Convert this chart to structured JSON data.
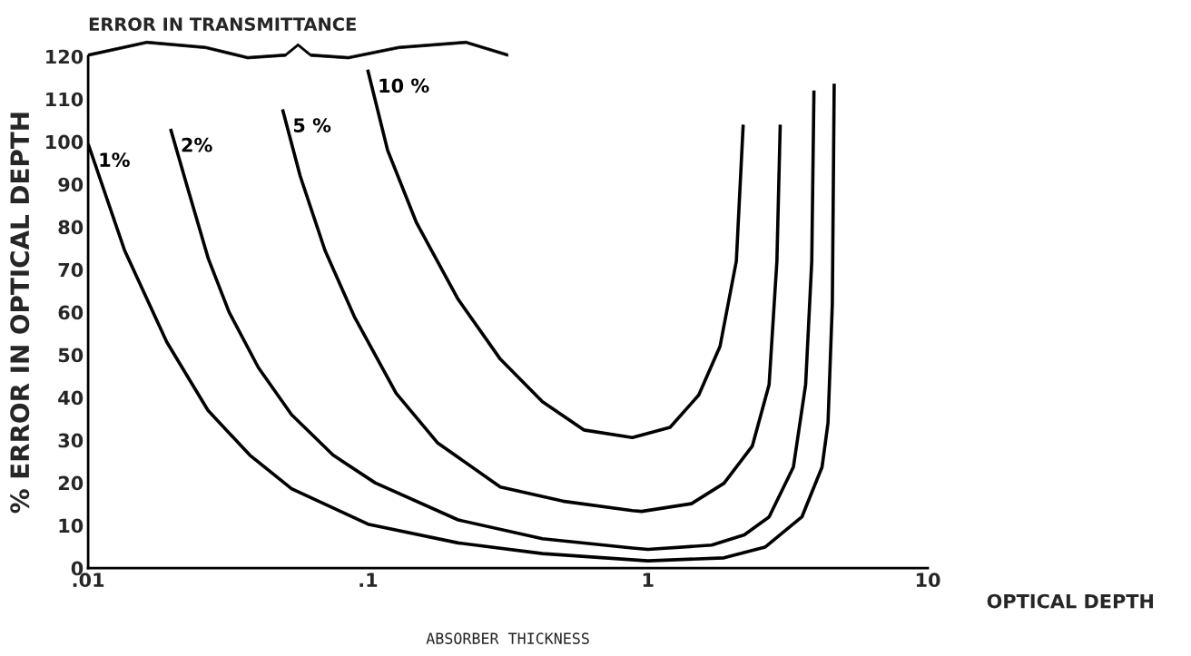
{
  "chart_data": {
    "type": "line",
    "xlabel": "OPTICAL DEPTH",
    "ylabel": "% ERROR IN OPTICAL DEPTH",
    "annotations": [
      "ERROR IN TRANSMITTANCE",
      "ABSORBER THICKNESS"
    ],
    "log": "x",
    "xlim": [
      0.01,
      10
    ],
    "ylim": [
      0,
      120
    ],
    "xticks": [
      {
        "value": 0.01,
        "label": ".01"
      },
      {
        "value": 0.1,
        "label": ".1"
      },
      1,
      10
    ],
    "yticks": [
      0,
      10,
      20,
      30,
      40,
      50,
      60,
      70,
      80,
      90,
      100,
      110,
      120
    ],
    "grid": false,
    "legend": false,
    "marker": "none",
    "line_style": "solid",
    "series": [
      {
        "name": "1%",
        "color": "#000000",
        "x": [
          0.01,
          0.0135,
          0.0191,
          0.0268,
          0.0378,
          0.0533,
          0.1,
          0.21,
          0.42,
          1,
          1.87,
          2.62,
          3.55,
          4.19,
          4.4,
          4.56,
          4.63
        ],
        "values": [
          99.5,
          74.5,
          53,
          37,
          26.5,
          18.6,
          10.3,
          5.9,
          3.4,
          1.7,
          2.4,
          4.9,
          12,
          23.7,
          34,
          62,
          113.6
        ]
      },
      {
        "name": "2%",
        "color": "#000000",
        "x": [
          0.0197,
          0.0227,
          0.0269,
          0.0319,
          0.0406,
          0.0533,
          0.075,
          0.106,
          0.21,
          0.42,
          0.88,
          1,
          1.69,
          2.21,
          2.71,
          3.31,
          3.66,
          3.85,
          3.92
        ],
        "values": [
          103,
          89,
          72.5,
          60,
          47,
          36,
          26.5,
          20,
          11.3,
          6.9,
          4.7,
          4.4,
          5.4,
          7.8,
          12,
          23.7,
          43,
          72,
          112
        ]
      },
      {
        "name": "5 %",
        "color": "#000000",
        "x": [
          0.0495,
          0.0572,
          0.0702,
          0.0893,
          0.126,
          0.177,
          0.297,
          0.497,
          0.88,
          0.95,
          1.43,
          1.87,
          2.36,
          2.71,
          2.89,
          2.97
        ],
        "values": [
          107.6,
          92,
          74.5,
          59,
          41,
          29.4,
          19,
          15.7,
          13.5,
          13.3,
          15.1,
          19.9,
          28.6,
          43,
          72,
          104
        ]
      },
      {
        "name": "10 %",
        "color": "#000000",
        "x": [
          0.0997,
          0.1175,
          0.149,
          0.21,
          0.297,
          0.42,
          0.59,
          0.88,
          1.2,
          1.52,
          1.81,
          2.07,
          2.19
        ],
        "values": [
          116.9,
          98,
          81,
          63,
          49,
          39,
          32.4,
          30.6,
          33,
          40.6,
          52,
          72,
          104
        ]
      }
    ]
  }
}
